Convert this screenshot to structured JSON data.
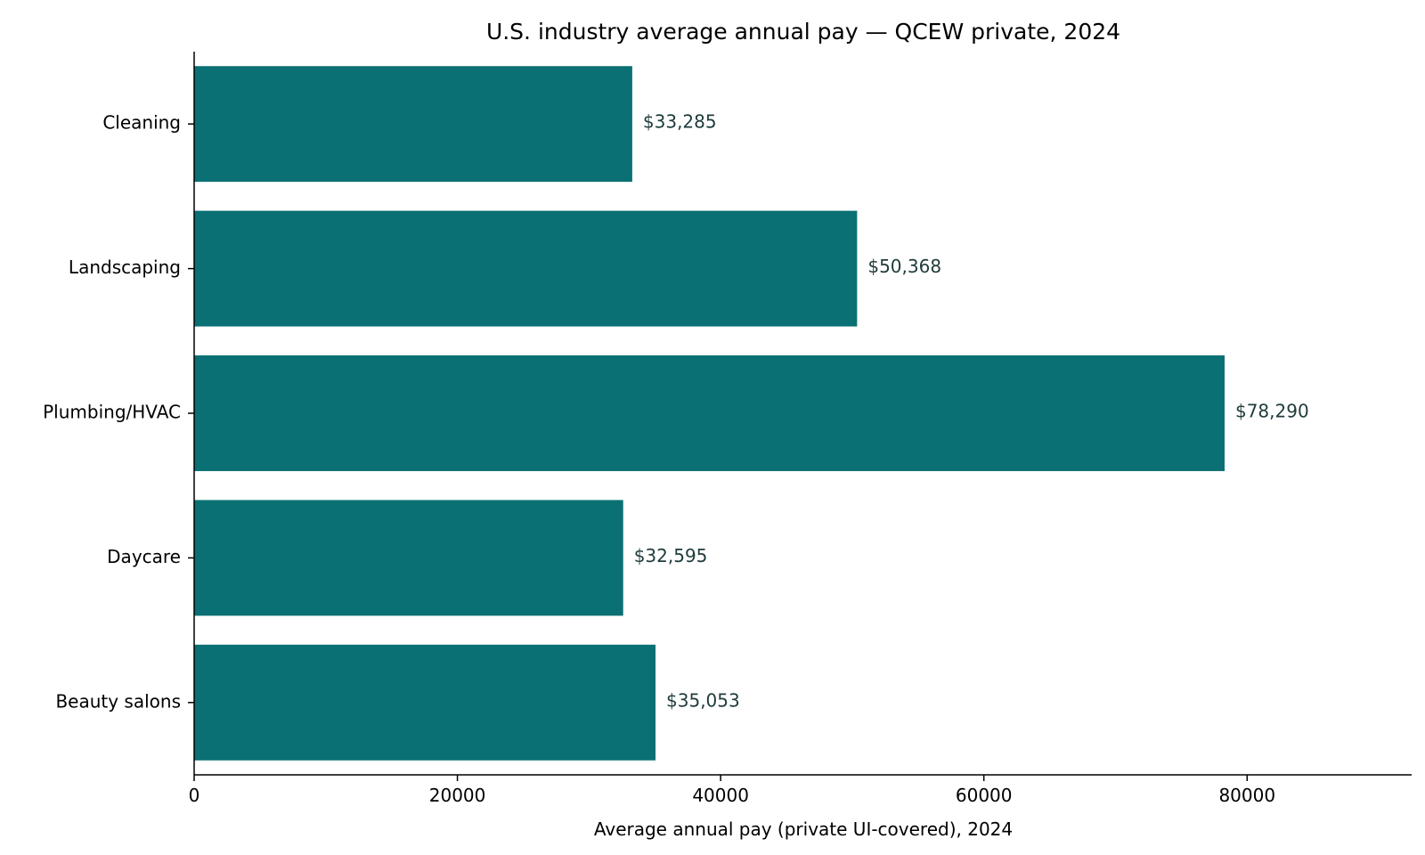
{
  "chart_data": {
    "type": "bar",
    "orientation": "horizontal",
    "title": "U.S. industry average annual pay — QCEW private, 2024",
    "xlabel": "Average annual pay (private UI-covered), 2024",
    "ylabel": "",
    "categories": [
      "Cleaning",
      "Landscaping",
      "Plumbing/HVAC",
      "Daycare",
      "Beauty salons"
    ],
    "values": [
      33285,
      50368,
      78290,
      32595,
      35053
    ],
    "value_labels": [
      "$33,285",
      "$50,368",
      "$78,290",
      "$32,595",
      "$35,053"
    ],
    "x_ticks": [
      0,
      20000,
      40000,
      60000,
      80000
    ],
    "x_tick_labels": [
      "0",
      "20000",
      "40000",
      "60000",
      "80000"
    ],
    "xlim": [
      0,
      92500
    ],
    "grid": false,
    "colors": {
      "bar": "#0a7073",
      "value_label": "#1f3b3b"
    }
  }
}
